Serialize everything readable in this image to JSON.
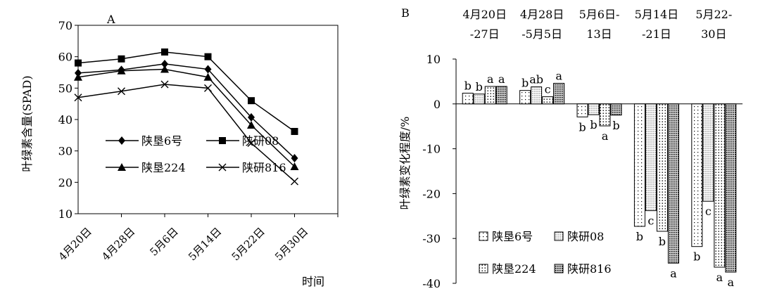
{
  "chart_data": [
    {
      "panel": "A",
      "type": "line",
      "xlabel": "时间",
      "ylabel": "叶绿素含量(SPAD)",
      "categories": [
        "4月20日",
        "4月28日",
        "5月6日",
        "5月14日",
        "5月22日",
        "5月30日"
      ],
      "ylim": [
        10,
        70
      ],
      "yticks": [
        10,
        20,
        30,
        40,
        50,
        60,
        70
      ],
      "grid": false,
      "legend_position": "lower-left",
      "series": [
        {
          "name": "陕垦6号",
          "marker": "diamond",
          "values": [
            54.8,
            55.8,
            57.7,
            56.0,
            40.7,
            27.7
          ]
        },
        {
          "name": "陕研08",
          "marker": "square",
          "values": [
            58.0,
            59.3,
            61.5,
            60.0,
            46.0,
            36.2
          ]
        },
        {
          "name": "陕垦224",
          "marker": "triangle",
          "values": [
            53.5,
            55.5,
            56.0,
            53.5,
            38.2,
            25.0
          ]
        },
        {
          "name": "陕研816",
          "marker": "x",
          "values": [
            47.0,
            49.0,
            51.2,
            50.0,
            32.5,
            20.3
          ]
        }
      ]
    },
    {
      "panel": "B",
      "type": "bar",
      "ylabel": "叶绿素变化程度/%",
      "period_labels": [
        [
          "4月20日",
          "-27日"
        ],
        [
          "4月28日",
          "-5月5日"
        ],
        [
          "5月6日-",
          "13日"
        ],
        [
          "5月14日",
          "-21日"
        ],
        [
          "5月22-",
          "30日"
        ]
      ],
      "ylim": [
        -40,
        10
      ],
      "yticks": [
        -40,
        -30,
        -20,
        -10,
        0,
        10
      ],
      "grid": false,
      "legend_position": "lower-left",
      "series": [
        {
          "name": "陕垦6号",
          "pattern": "dots-sparse",
          "values": [
            2.4,
            3.0,
            -2.9,
            -27.3,
            -31.8
          ],
          "letters": [
            "b",
            "b",
            "b",
            "b",
            "b"
          ]
        },
        {
          "name": "陕研08",
          "pattern": "dots-fine",
          "values": [
            2.2,
            3.8,
            -2.4,
            -23.8,
            -21.7
          ],
          "letters": [
            "b",
            "ab",
            "b",
            "c",
            "c"
          ]
        },
        {
          "name": "陕垦224",
          "pattern": "dots-medium",
          "values": [
            3.9,
            1.6,
            -4.9,
            -28.4,
            -36.4
          ],
          "letters": [
            "a",
            "c",
            "a",
            "b",
            "a"
          ]
        },
        {
          "name": "陕研816",
          "pattern": "dots-dense",
          "values": [
            3.9,
            4.6,
            -2.5,
            -35.5,
            -37.5
          ],
          "letters": [
            "a",
            "a",
            "b",
            "a",
            "a"
          ]
        }
      ]
    }
  ]
}
